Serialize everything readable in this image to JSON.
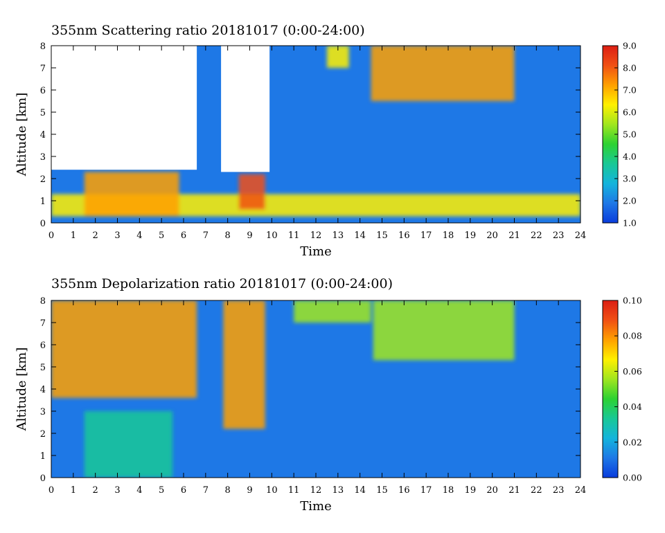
{
  "chart_data": [
    {
      "type": "heatmap",
      "title": "355nm Scattering ratio  20181017 (0:00-24:00)",
      "xlabel": "Time",
      "ylabel": "Altitude [km]",
      "xlim": [
        0,
        24
      ],
      "ylim": [
        0,
        8
      ],
      "x_ticks": [
        "0",
        "1",
        "2",
        "3",
        "4",
        "5",
        "6",
        "7",
        "8",
        "9",
        "10",
        "11",
        "12",
        "13",
        "14",
        "15",
        "16",
        "17",
        "18",
        "19",
        "20",
        "21",
        "22",
        "23",
        "24"
      ],
      "y_ticks": [
        "0",
        "1",
        "2",
        "3",
        "4",
        "5",
        "6",
        "7",
        "8"
      ],
      "colorbar": {
        "min": 1.0,
        "max": 9.0,
        "ticks": [
          "1.0",
          "2.0",
          "3.0",
          "4.0",
          "5.0",
          "6.0",
          "7.0",
          "8.0",
          "9.0"
        ],
        "colormap": [
          "#0a3cdc",
          "#1e78e6",
          "#14b4dc",
          "#19c896",
          "#2dd232",
          "#a0e61e",
          "#fff000",
          "#ffa000",
          "#f05014",
          "#dc1e14"
        ]
      },
      "missing_regions": [
        {
          "t_start": 0.0,
          "t_end": 6.6,
          "z_start": 2.4,
          "z_end": 8.0
        },
        {
          "t_start": 7.7,
          "t_end": 9.9,
          "z_start": 2.3,
          "z_end": 8.0
        }
      ],
      "features": [
        {
          "t_start": 0.0,
          "t_end": 24.0,
          "z_start": 0.3,
          "z_end": 1.3,
          "value": 6.5
        },
        {
          "t_start": 1.5,
          "t_end": 5.8,
          "z_start": 0.3,
          "z_end": 2.3,
          "value": 7.5
        },
        {
          "t_start": 8.5,
          "t_end": 9.7,
          "z_start": 0.6,
          "z_end": 2.2,
          "value": 8.5
        },
        {
          "t_start": 14.5,
          "t_end": 21.0,
          "z_start": 5.5,
          "z_end": 8.0,
          "value": 7.5
        },
        {
          "t_start": 12.5,
          "t_end": 13.5,
          "z_start": 7.0,
          "z_end": 8.0,
          "value": 6.0
        }
      ]
    },
    {
      "type": "heatmap",
      "title": "355nm Depolarization ratio  20181017 (0:00-24:00)",
      "xlabel": "Time",
      "ylabel": "Altitude [km]",
      "xlim": [
        0,
        24
      ],
      "ylim": [
        0,
        8
      ],
      "x_ticks": [
        "0",
        "1",
        "2",
        "3",
        "4",
        "5",
        "6",
        "7",
        "8",
        "9",
        "10",
        "11",
        "12",
        "13",
        "14",
        "15",
        "16",
        "17",
        "18",
        "19",
        "20",
        "21",
        "22",
        "23",
        "24"
      ],
      "y_ticks": [
        "0",
        "1",
        "2",
        "3",
        "4",
        "5",
        "6",
        "7",
        "8"
      ],
      "colorbar": {
        "min": 0.0,
        "max": 0.1,
        "ticks": [
          "0.00",
          "0.02",
          "0.04",
          "0.06",
          "0.08",
          "0.10"
        ],
        "colormap": [
          "#0a3cdc",
          "#1e78e6",
          "#14b4dc",
          "#19c896",
          "#2dd232",
          "#a0e61e",
          "#fff000",
          "#ffa000",
          "#f05014",
          "#dc1e14"
        ]
      },
      "features": [
        {
          "t_start": 0.0,
          "t_end": 6.6,
          "z_start": 3.6,
          "z_end": 8.0,
          "value": 0.08
        },
        {
          "t_start": 1.5,
          "t_end": 5.5,
          "z_start": 0.0,
          "z_end": 3.0,
          "value": 0.035
        },
        {
          "t_start": 7.8,
          "t_end": 9.7,
          "z_start": 2.2,
          "z_end": 8.0,
          "value": 0.08
        },
        {
          "t_start": 14.6,
          "t_end": 21.0,
          "z_start": 5.3,
          "z_end": 8.0,
          "value": 0.06
        },
        {
          "t_start": 11.0,
          "t_end": 14.5,
          "z_start": 7.0,
          "z_end": 8.0,
          "value": 0.05
        }
      ]
    }
  ]
}
